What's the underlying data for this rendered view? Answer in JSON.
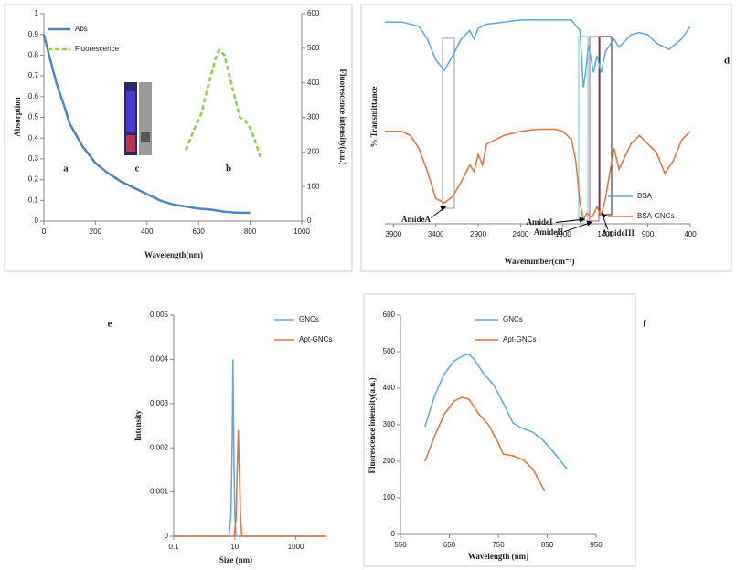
{
  "chart_data": [
    {
      "type": "line",
      "x_label": "Wavelength(nm)",
      "y_label": "Absorption",
      "y2_label": "Fluorescence intensity(a.u.)",
      "annotations": [
        "a",
        "c",
        "b"
      ],
      "xlim": [
        0,
        1000
      ],
      "xticks": [
        0,
        200,
        400,
        600,
        800,
        1000
      ],
      "ylim": [
        0,
        1
      ],
      "yticks": [
        0,
        0.1,
        0.2,
        0.3,
        0.4,
        0.5,
        0.6,
        0.7,
        0.8,
        0.9,
        1
      ],
      "y2lim": [
        0,
        600
      ],
      "y2ticks": [
        0,
        100,
        200,
        300,
        400,
        500,
        600
      ],
      "legend": "upper left",
      "series": [
        {
          "name": "Abs",
          "color": "#4a86c8",
          "linestyle": "solid",
          "x": [
            0,
            20,
            50,
            80,
            100,
            150,
            200,
            250,
            300,
            350,
            400,
            450,
            500,
            550,
            600,
            650,
            700,
            750,
            800
          ],
          "values": [
            0.9,
            0.8,
            0.66,
            0.55,
            0.47,
            0.36,
            0.28,
            0.23,
            0.19,
            0.16,
            0.13,
            0.1,
            0.08,
            0.07,
            0.06,
            0.055,
            0.045,
            0.04,
            0.04
          ]
        },
        {
          "name": "Fluorescence",
          "color": "#8fd14f",
          "linestyle": "dashed",
          "axis": "y2",
          "x": [
            550,
            580,
            610,
            640,
            670,
            680,
            700,
            720,
            740,
            760,
            780,
            800,
            820,
            840
          ],
          "values": [
            205,
            260,
            310,
            400,
            480,
            495,
            480,
            420,
            360,
            300,
            290,
            270,
            230,
            185
          ]
        }
      ]
    },
    {
      "type": "line",
      "x_label": "Wavenumber(cm⁻¹)",
      "y_label": "% Transmittance",
      "annotations": [
        "AmideA",
        "AmideI",
        "AmideII",
        "AmideIII",
        "d"
      ],
      "xlim": [
        4000,
        400
      ],
      "xticks": [
        3900,
        3400,
        2900,
        2400,
        1900,
        1400,
        900,
        400
      ],
      "ylim": [
        0,
        100
      ],
      "legend": "lower right",
      "series": [
        {
          "name": "BSA",
          "color": "#5aabdc",
          "linestyle": "solid",
          "x": [
            4000,
            3800,
            3600,
            3500,
            3400,
            3300,
            3200,
            3100,
            3000,
            2950,
            2900,
            2800,
            2600,
            2400,
            2200,
            2000,
            1800,
            1700,
            1660,
            1640,
            1600,
            1540,
            1500,
            1450,
            1400,
            1300,
            1240,
            1100,
            1000,
            900,
            800,
            650,
            500,
            400
          ],
          "values": [
            96,
            96,
            94,
            88,
            78,
            73,
            80,
            88,
            92,
            88,
            93,
            95,
            96,
            97,
            97,
            97,
            97,
            92,
            65,
            70,
            85,
            72,
            80,
            72,
            82,
            88,
            84,
            90,
            91,
            90,
            86,
            83,
            88,
            94
          ]
        },
        {
          "name": "BSA-GNCs",
          "color": "#e8703a",
          "linestyle": "solid",
          "x": [
            4000,
            3800,
            3700,
            3600,
            3500,
            3400,
            3300,
            3200,
            3100,
            3000,
            2950,
            2900,
            2850,
            2800,
            2600,
            2400,
            2200,
            2000,
            1900,
            1800,
            1750,
            1700,
            1660,
            1620,
            1560,
            1500,
            1450,
            1400,
            1300,
            1240,
            1100,
            1000,
            900,
            800,
            700,
            600,
            500,
            400
          ],
          "values": [
            44,
            44,
            42,
            36,
            25,
            12,
            10,
            13,
            20,
            28,
            25,
            33,
            28,
            38,
            42,
            44,
            45,
            45,
            44,
            40,
            30,
            10,
            2,
            5,
            3,
            8,
            4,
            12,
            36,
            26,
            38,
            42,
            38,
            34,
            24,
            30,
            40,
            44
          ]
        }
      ]
    },
    {
      "type": "line",
      "x_label": "Size (nm)",
      "y_label": "Intensity",
      "annotations": [
        "e"
      ],
      "xlim": [
        0.1,
        10000
      ],
      "xticks": [
        0.1,
        10,
        1000
      ],
      "xscale": "log",
      "ylim": [
        0,
        0.005
      ],
      "yticks": [
        0,
        0.001,
        0.002,
        0.003,
        0.004,
        0.005
      ],
      "legend": "upper right",
      "series": [
        {
          "name": "GNCs",
          "color": "#5aabdc",
          "linestyle": "solid",
          "x": [
            0.1,
            6.5,
            7.5,
            8.2,
            8.7,
            9.3,
            10,
            11,
            10000
          ],
          "values": [
            0,
            0,
            0.0005,
            0.002,
            0.004,
            0.002,
            0.0005,
            0,
            0
          ]
        },
        {
          "name": "Apt-GNCs",
          "color": "#e8703a",
          "linestyle": "solid",
          "x": [
            0.1,
            9.5,
            11,
            12,
            13,
            14,
            15.5,
            17,
            10000
          ],
          "values": [
            0,
            0,
            0.0004,
            0.0015,
            0.0024,
            0.0015,
            0.0004,
            0,
            0
          ]
        }
      ]
    },
    {
      "type": "line",
      "x_label": "Wavelength (nm)",
      "y_label": "Fluorescence intensity(a.u.)",
      "annotations": [
        "f"
      ],
      "xlim": [
        550,
        950
      ],
      "xticks": [
        550,
        650,
        750,
        850,
        950
      ],
      "ylim": [
        0,
        600
      ],
      "yticks": [
        0,
        100,
        200,
        300,
        400,
        500,
        600
      ],
      "legend": "upper left",
      "series": [
        {
          "name": "GNCs",
          "color": "#5aabdc",
          "linestyle": "solid",
          "x": [
            600,
            620,
            640,
            660,
            680,
            690,
            700,
            720,
            740,
            760,
            780,
            800,
            820,
            840,
            860,
            890
          ],
          "values": [
            295,
            380,
            440,
            475,
            490,
            493,
            480,
            440,
            410,
            360,
            305,
            290,
            280,
            260,
            230,
            180
          ]
        },
        {
          "name": "Apt-GNCs",
          "color": "#e8703a",
          "linestyle": "solid",
          "x": [
            600,
            620,
            640,
            660,
            675,
            690,
            710,
            730,
            750,
            760,
            780,
            800,
            820,
            845
          ],
          "values": [
            200,
            270,
            330,
            365,
            375,
            370,
            330,
            300,
            250,
            220,
            215,
            205,
            180,
            118
          ]
        }
      ]
    }
  ]
}
